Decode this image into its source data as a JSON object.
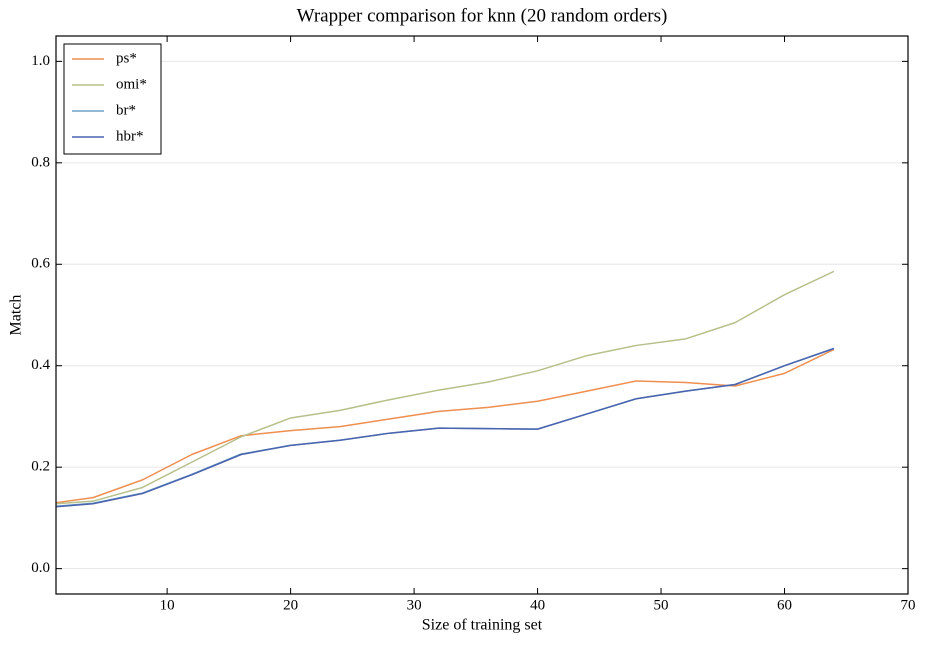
{
  "chart_data": {
    "type": "line",
    "title": "Wrapper comparison for knn (20 random orders)",
    "x_label": "Size of training set",
    "y_label": "Match",
    "x": [
      1,
      4,
      8,
      12,
      16,
      20,
      24,
      28,
      32,
      36,
      40,
      44,
      48,
      52,
      56,
      60,
      64
    ],
    "series": [
      {
        "name": "ps*",
        "color": "#ee8e4f",
        "values": [
          0.13,
          0.14,
          0.175,
          0.225,
          0.262,
          0.272,
          0.28,
          0.295,
          0.31,
          0.318,
          0.33,
          0.35,
          0.37,
          0.367,
          0.36,
          0.385,
          0.432
        ]
      },
      {
        "name": "omi*",
        "color": "#b5c08a",
        "values": [
          0.128,
          0.133,
          0.16,
          0.21,
          0.26,
          0.297,
          0.312,
          0.333,
          0.352,
          0.368,
          0.39,
          0.42,
          0.44,
          0.453,
          0.485,
          0.54,
          0.586
        ]
      },
      {
        "name": "br*",
        "color": "#6fa3c8",
        "values": [
          0.123,
          0.129,
          0.149,
          0.186,
          0.226,
          0.243,
          0.253,
          0.267,
          0.277,
          0.276,
          0.275,
          0.305,
          0.335,
          0.35,
          0.363,
          0.4,
          0.434
        ]
      },
      {
        "name": "hbr*",
        "color": "#4a63ae",
        "values": [
          0.122,
          0.128,
          0.148,
          0.185,
          0.225,
          0.243,
          0.253,
          0.267,
          0.277,
          0.276,
          0.275,
          0.305,
          0.335,
          0.35,
          0.363,
          0.4,
          0.434
        ]
      }
    ],
    "xlim": [
      1,
      70
    ],
    "xticks": [
      10,
      20,
      30,
      40,
      50,
      60,
      70
    ],
    "ylim": [
      -0.05,
      1.05
    ],
    "yticks": [
      {
        "value": 0,
        "label": "0.0"
      },
      0.2,
      0.4,
      0.6,
      0.8,
      {
        "value": 1,
        "label": "1.0"
      }
    ],
    "grid": true,
    "legend": "upper left"
  }
}
